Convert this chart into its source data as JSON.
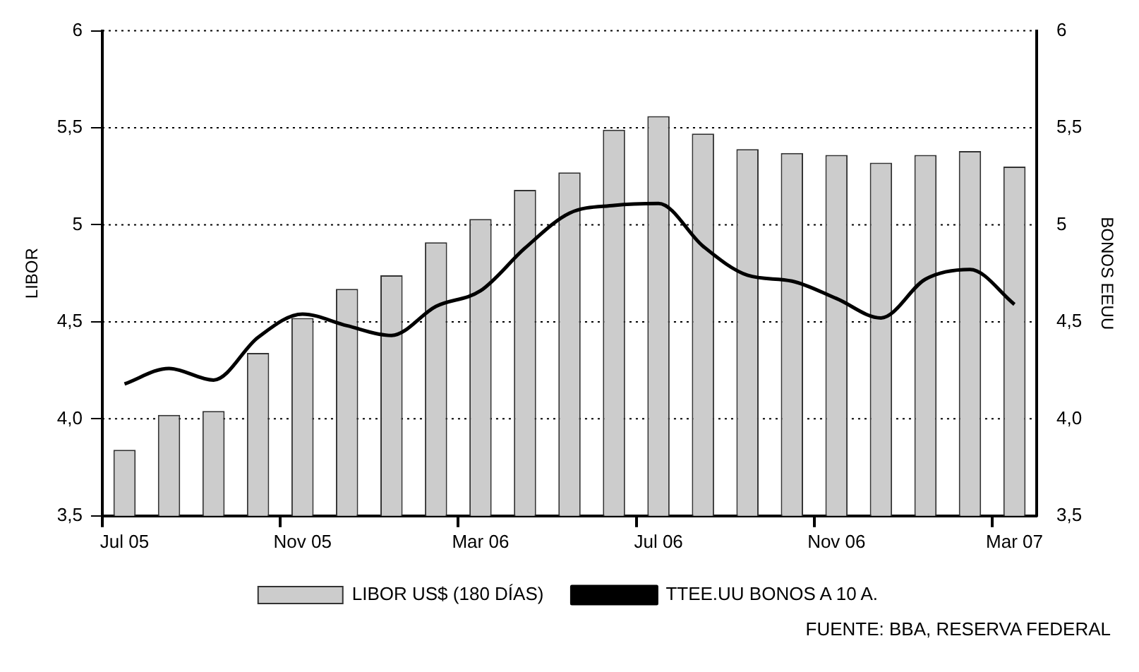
{
  "chart_data": {
    "type": "bar",
    "ylabel": "LIBOR",
    "y2label": "BONOS EEUU",
    "categories": [
      "Jul 05",
      null,
      null,
      null,
      "Nov 05",
      null,
      null,
      null,
      "Mar 06",
      null,
      null,
      null,
      "Jul 06",
      null,
      null,
      null,
      "Nov 06",
      null,
      null,
      null,
      "Mar 07"
    ],
    "series": [
      {
        "name": "LIBOR US$ (180 DÍAS)",
        "color": "#cccccc",
        "values": [
          3.84,
          4.02,
          4.04,
          4.34,
          4.52,
          4.67,
          4.74,
          4.91,
          5.03,
          5.18,
          5.27,
          5.49,
          5.56,
          5.47,
          5.39,
          5.37,
          5.36,
          5.32,
          5.36,
          5.38,
          5.3
        ]
      },
      {
        "name": "TTEE.UU BONOS A 10 A.",
        "type": "line",
        "axis": "y2",
        "color": "#000000",
        "values": [
          4.18,
          4.26,
          4.2,
          4.42,
          4.54,
          4.48,
          4.43,
          4.58,
          4.66,
          4.88,
          5.06,
          5.1,
          5.11,
          4.89,
          4.74,
          4.71,
          4.62,
          4.52,
          4.72,
          4.77,
          4.59
        ]
      }
    ],
    "ylim": [
      3.5,
      6
    ],
    "yticks": [
      {
        "value": 3.5,
        "label": "3,5"
      },
      {
        "value": 4,
        "label": "4,0"
      },
      {
        "value": 4.5,
        "label": "4,5"
      },
      5,
      {
        "value": 5.5,
        "label": "5,5"
      },
      6
    ],
    "y2lim": [
      3.5,
      6
    ],
    "y2ticks": [
      {
        "value": 3.5,
        "label": "3,5"
      },
      {
        "value": 4,
        "label": "4,0"
      },
      {
        "value": 4.5,
        "label": "4,5"
      },
      5,
      {
        "value": 5.5,
        "label": "5,5"
      },
      6
    ],
    "grid": "y",
    "legend": "bottom",
    "marker": "none",
    "line_style": "solid",
    "annotations": [
      "FUENTE: BBA, RESERVA FEDERAL"
    ]
  }
}
